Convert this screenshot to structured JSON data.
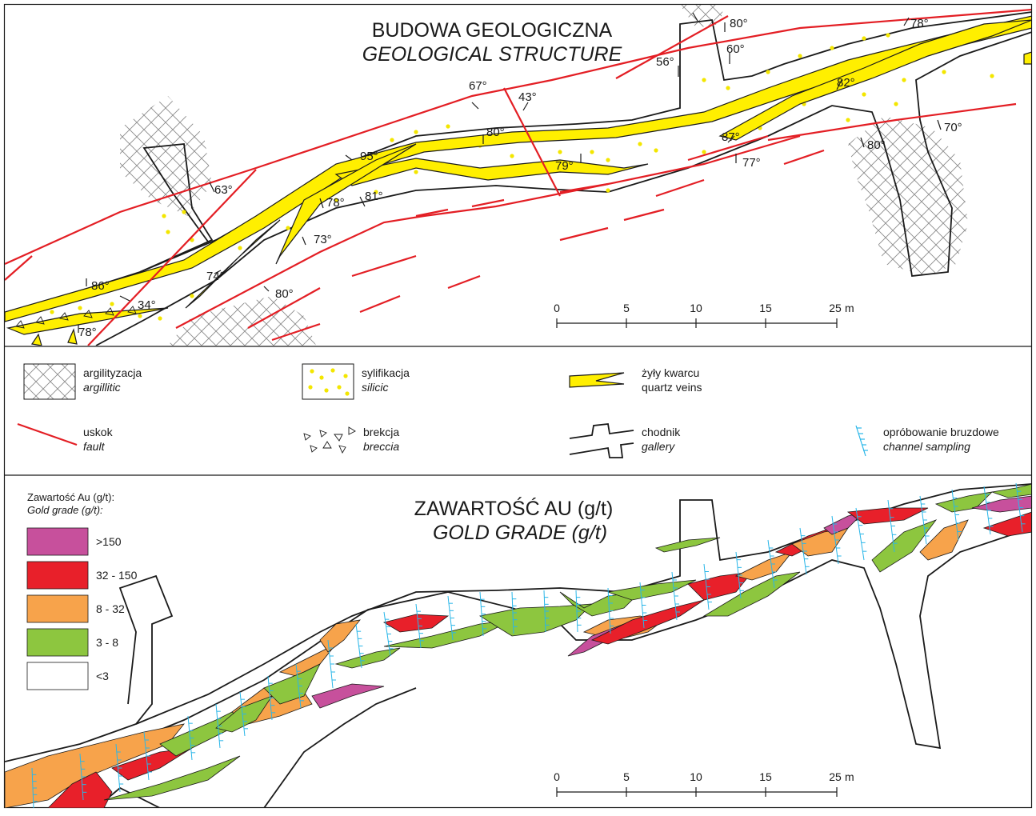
{
  "colors": {
    "fault": "#e31e24",
    "quartz": "#ffef00",
    "silic_dot": "#f3e600",
    "sampling": "#29b6e8",
    "outline": "#1a1a1a",
    "grade_gt150": "#c7509c",
    "grade_32_150": "#e8202a",
    "grade_8_32": "#f7a34b",
    "grade_3_8": "#8dc63f",
    "grade_lt3": "#ffffff"
  },
  "top_panel": {
    "title_pl": "BUDOWA GEOLOGICZNA",
    "title_en": "GEOLOGICAL STRUCTURE",
    "dip_labels": [
      "80°",
      "78°",
      "56°",
      "60°",
      "67°",
      "43°",
      "82°",
      "80°",
      "87°",
      "70°",
      "80°",
      "95°",
      "79°",
      "77°",
      "63°",
      "78°",
      "81°",
      "73°",
      "74°",
      "86°",
      "34°",
      "80°",
      "78°"
    ],
    "scale": {
      "ticks": [
        "0",
        "5",
        "10",
        "15",
        "25"
      ],
      "unit": "m"
    }
  },
  "legend": {
    "items": [
      {
        "pl": "argilityzacja",
        "en": "argillitic",
        "icon": "cross-hatch-icon"
      },
      {
        "pl": "sylifikacja",
        "en": "silicic",
        "icon": "yellow-dots-icon"
      },
      {
        "pl": "żyły kwarcu",
        "en": "quartz veins",
        "icon": "quartz-vein-icon"
      },
      {
        "pl": "uskok",
        "en": "fault",
        "icon": "fault-line-icon"
      },
      {
        "pl": "brekcja",
        "en": "breccia",
        "icon": "breccia-triangles-icon"
      },
      {
        "pl": "chodnik",
        "en": "gallery",
        "icon": "gallery-outline-icon"
      },
      {
        "pl": "opróbowanie bruzdowe",
        "en": "channel sampling",
        "icon": "channel-sampling-icon"
      }
    ]
  },
  "bottom_panel": {
    "title_pl": "ZAWARTOŚĆ AU (g/t)",
    "title_en": "GOLD GRADE (g/t)",
    "grade_legend_title_pl": "Zawartość Au (g/t):",
    "grade_legend_title_en": "Gold grade (g/t):",
    "grades": [
      {
        "label": ">150",
        "color": "#c7509c"
      },
      {
        "label": "32 - 150",
        "color": "#e8202a"
      },
      {
        "label": "8 - 32",
        "color": "#f7a34b"
      },
      {
        "label": "3 - 8",
        "color": "#8dc63f"
      },
      {
        "label": "<3",
        "color": "#ffffff"
      }
    ],
    "scale": {
      "ticks": [
        "0",
        "5",
        "10",
        "15",
        "25"
      ],
      "unit": "m"
    }
  }
}
